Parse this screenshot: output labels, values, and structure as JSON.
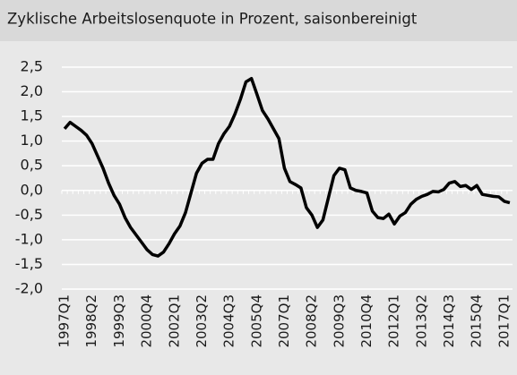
{
  "chart_data": {
    "type": "line",
    "subtitle": "Zyklische Arbeitslosenquote in Prozent, saisonbereinigt",
    "categories": [
      "1997Q1",
      null,
      null,
      null,
      null,
      "1998Q2",
      null,
      null,
      null,
      null,
      "1999Q3",
      null,
      null,
      null,
      null,
      "2000Q4",
      null,
      null,
      null,
      null,
      "2002Q1",
      null,
      null,
      null,
      null,
      "2003Q2",
      null,
      null,
      null,
      null,
      "2004Q3",
      null,
      null,
      null,
      null,
      "2005Q4",
      null,
      null,
      null,
      null,
      "2007Q1",
      null,
      null,
      null,
      null,
      "2008Q2",
      null,
      null,
      null,
      null,
      "2009Q3",
      null,
      null,
      null,
      null,
      "2010Q4",
      null,
      null,
      null,
      null,
      "2012Q1",
      null,
      null,
      null,
      null,
      "2013Q2",
      null,
      null,
      null,
      null,
      "2014Q3",
      null,
      null,
      null,
      null,
      "2015Q4",
      null,
      null,
      null,
      null,
      "2017Q1",
      null
    ],
    "series": [
      {
        "color": "#000000",
        "values": [
          1.25,
          1.38,
          1.3,
          1.22,
          1.12,
          0.95,
          0.7,
          0.45,
          0.15,
          -0.1,
          -0.28,
          -0.55,
          -0.75,
          -0.9,
          -1.05,
          -1.2,
          -1.3,
          -1.33,
          -1.25,
          -1.08,
          -0.88,
          -0.72,
          -0.45,
          -0.05,
          0.35,
          0.55,
          0.63,
          0.63,
          0.95,
          1.15,
          1.3,
          1.55,
          1.85,
          2.2,
          2.27,
          1.95,
          1.62,
          1.45,
          1.25,
          1.05,
          0.45,
          0.18,
          0.12,
          0.05,
          -0.35,
          -0.5,
          -0.75,
          -0.6,
          -0.15,
          0.3,
          0.45,
          0.42,
          0.05,
          0,
          -0.02,
          -0.05,
          -0.42,
          -0.55,
          -0.57,
          -0.48,
          -0.68,
          -0.52,
          -0.45,
          -0.28,
          -0.18,
          -0.12,
          -0.08,
          -0.02,
          -0.03,
          0.02,
          0.15,
          0.18,
          0.08,
          0.1,
          0.02,
          0.1,
          -0.08,
          -0.1,
          -0.12,
          -0.13,
          -0.22,
          -0.25
        ]
      }
    ],
    "ylim": [
      -2.0,
      2.5
    ],
    "yticks": [
      {
        "value": -2.0,
        "label": "-2,0"
      },
      {
        "value": -1.5,
        "label": "-1,5"
      },
      {
        "value": -1.0,
        "label": "-1,0"
      },
      {
        "value": -0.5,
        "label": "-0,5"
      },
      {
        "value": 0,
        "label": "0,0"
      },
      {
        "value": 0.5,
        "label": "0,5"
      },
      {
        "value": 1.0,
        "label": "1,0"
      },
      {
        "value": 1.5,
        "label": "1,5"
      },
      {
        "value": 2.0,
        "label": "2,0"
      },
      {
        "value": 2.5,
        "label": "2,5"
      }
    ],
    "grid": true
  }
}
